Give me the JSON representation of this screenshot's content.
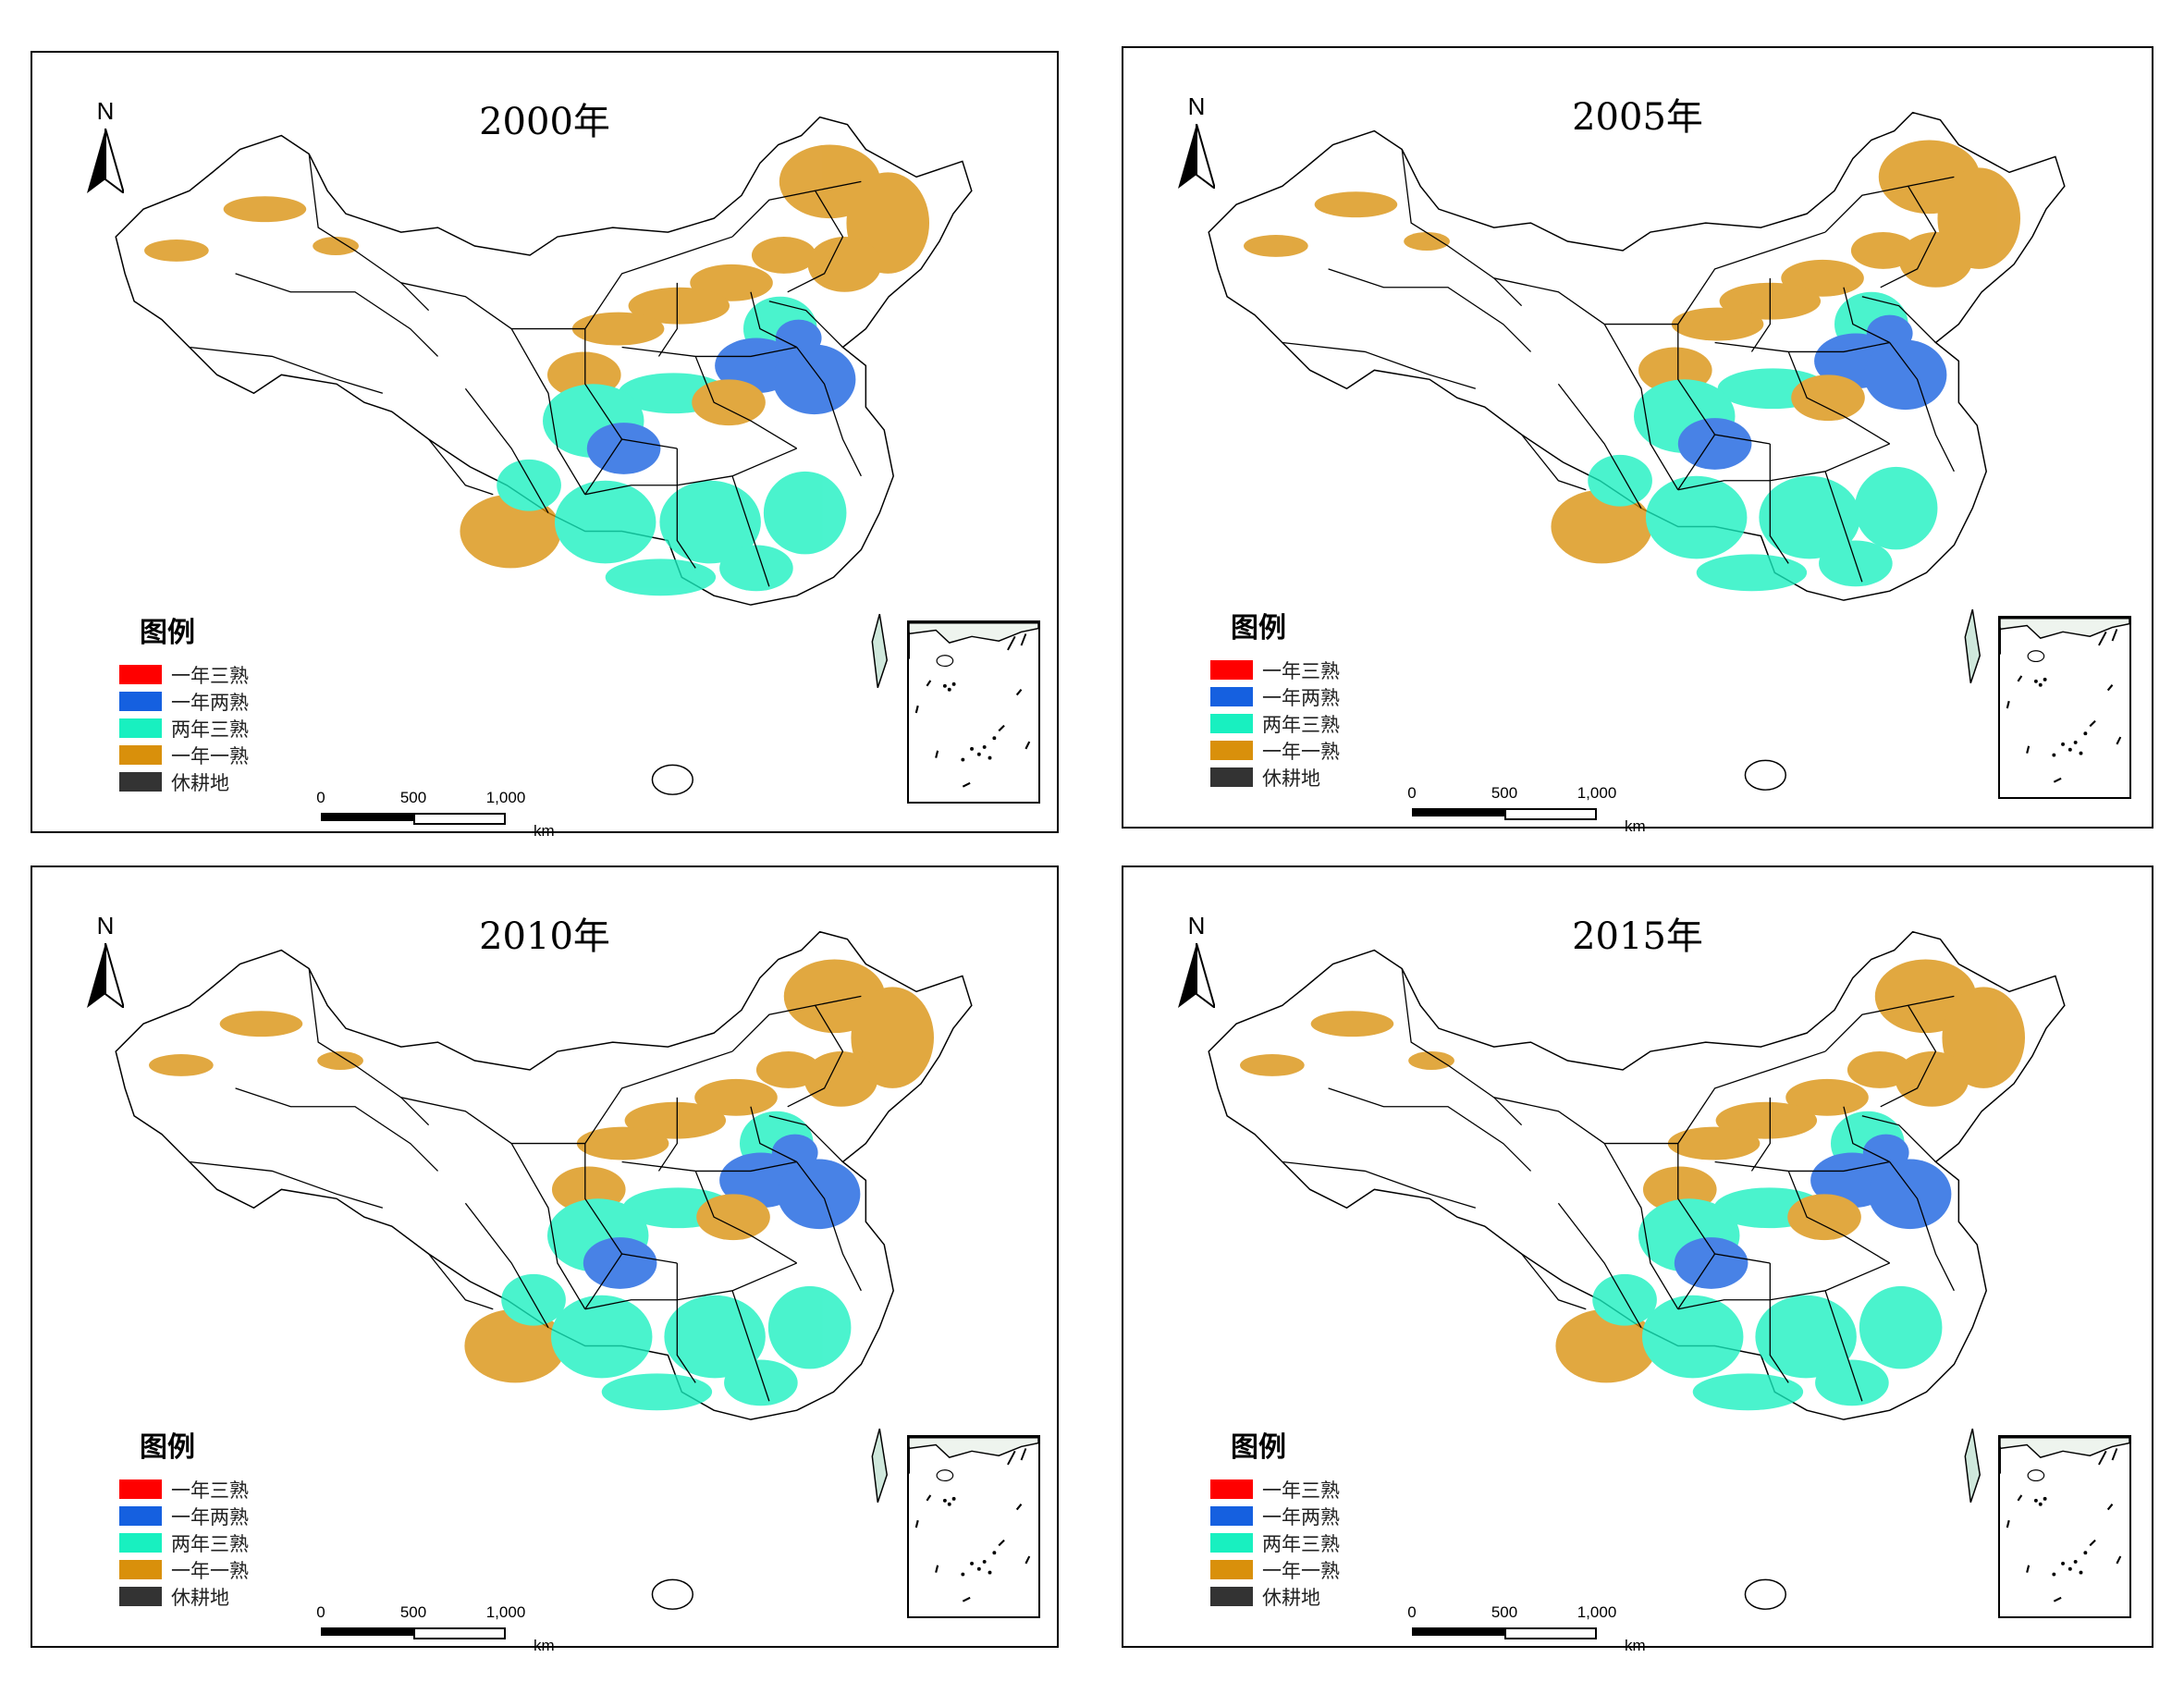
{
  "panels": [
    {
      "title": "2000年"
    },
    {
      "title": "2005年"
    },
    {
      "title": "2010年"
    },
    {
      "title": "2015年"
    }
  ],
  "north_label": "N",
  "legend": {
    "title": "图例",
    "items": [
      {
        "label": "一年三熟",
        "color": "#ff0000"
      },
      {
        "label": "一年两熟",
        "color": "#1560e0"
      },
      {
        "label": "两年三熟",
        "color": "#18f0c0"
      },
      {
        "label": "一年一熟",
        "color": "#d9900b"
      },
      {
        "label": "休耕地",
        "color": "#333333"
      }
    ]
  },
  "scale_bar": {
    "ticks": [
      "0",
      "500",
      "1,000"
    ],
    "unit": "km"
  }
}
